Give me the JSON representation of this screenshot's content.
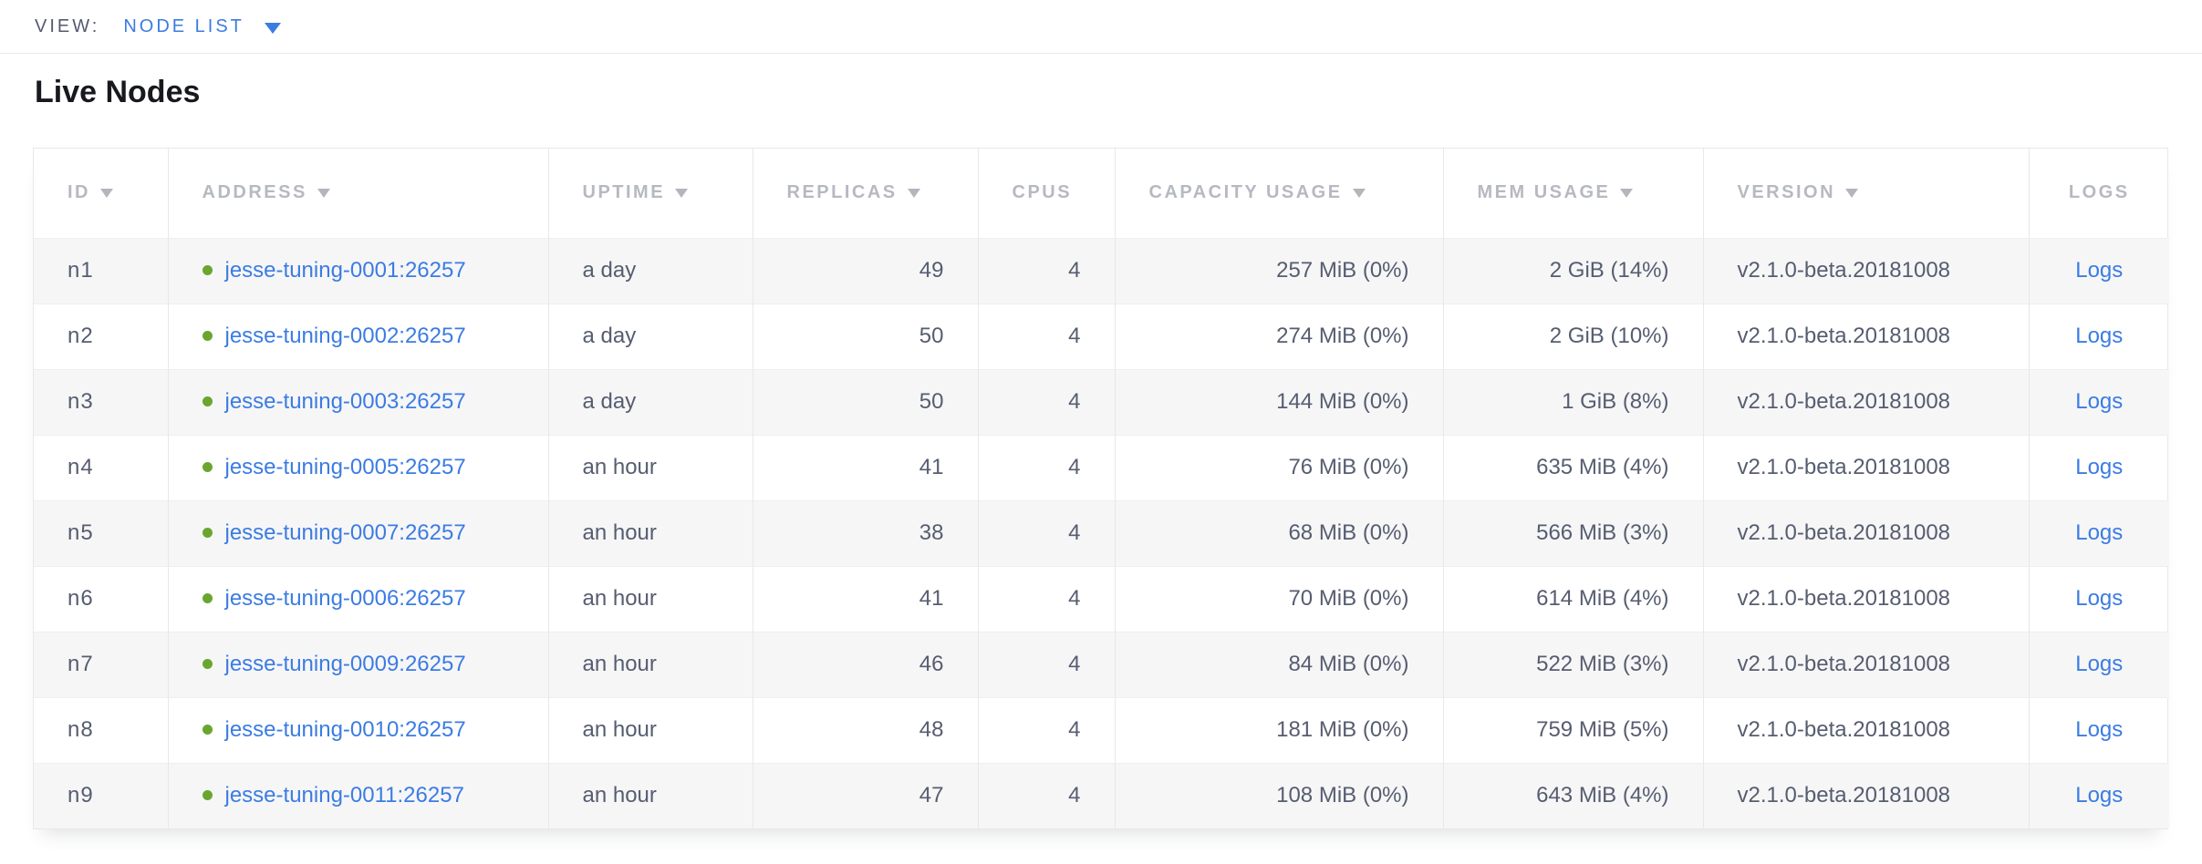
{
  "colors": {
    "accent_blue": "#3b7ce2",
    "status_green": "#6aa62f"
  },
  "view_bar": {
    "label": "VIEW:",
    "selected_view": "NODE LIST",
    "dropdown_icon": "triangle-down"
  },
  "heading": "Live Nodes",
  "table": {
    "sort_icon": "triangle-down",
    "status_icon": "green-dot",
    "columns": [
      {
        "key": "id",
        "label": "ID",
        "sortable": true
      },
      {
        "key": "address",
        "label": "ADDRESS",
        "sortable": true
      },
      {
        "key": "uptime",
        "label": "UPTIME",
        "sortable": true
      },
      {
        "key": "replicas",
        "label": "REPLICAS",
        "sortable": true
      },
      {
        "key": "cpus",
        "label": "CPUS",
        "sortable": false
      },
      {
        "key": "capacity",
        "label": "CAPACITY USAGE",
        "sortable": true
      },
      {
        "key": "mem",
        "label": "MEM USAGE",
        "sortable": true
      },
      {
        "key": "version",
        "label": "VERSION",
        "sortable": true
      },
      {
        "key": "logs",
        "label": "LOGS",
        "sortable": false
      }
    ],
    "rows": [
      {
        "id": "n1",
        "address": "jesse-tuning-0001:26257",
        "uptime": "a day",
        "replicas": "49",
        "cpus": "4",
        "capacity": "257 MiB (0%)",
        "mem": "2 GiB (14%)",
        "version": "v2.1.0-beta.20181008",
        "logs": "Logs"
      },
      {
        "id": "n2",
        "address": "jesse-tuning-0002:26257",
        "uptime": "a day",
        "replicas": "50",
        "cpus": "4",
        "capacity": "274 MiB (0%)",
        "mem": "2 GiB (10%)",
        "version": "v2.1.0-beta.20181008",
        "logs": "Logs"
      },
      {
        "id": "n3",
        "address": "jesse-tuning-0003:26257",
        "uptime": "a day",
        "replicas": "50",
        "cpus": "4",
        "capacity": "144 MiB (0%)",
        "mem": "1 GiB (8%)",
        "version": "v2.1.0-beta.20181008",
        "logs": "Logs"
      },
      {
        "id": "n4",
        "address": "jesse-tuning-0005:26257",
        "uptime": "an hour",
        "replicas": "41",
        "cpus": "4",
        "capacity": "76 MiB (0%)",
        "mem": "635 MiB (4%)",
        "version": "v2.1.0-beta.20181008",
        "logs": "Logs"
      },
      {
        "id": "n5",
        "address": "jesse-tuning-0007:26257",
        "uptime": "an hour",
        "replicas": "38",
        "cpus": "4",
        "capacity": "68 MiB (0%)",
        "mem": "566 MiB (3%)",
        "version": "v2.1.0-beta.20181008",
        "logs": "Logs"
      },
      {
        "id": "n6",
        "address": "jesse-tuning-0006:26257",
        "uptime": "an hour",
        "replicas": "41",
        "cpus": "4",
        "capacity": "70 MiB (0%)",
        "mem": "614 MiB (4%)",
        "version": "v2.1.0-beta.20181008",
        "logs": "Logs"
      },
      {
        "id": "n7",
        "address": "jesse-tuning-0009:26257",
        "uptime": "an hour",
        "replicas": "46",
        "cpus": "4",
        "capacity": "84 MiB (0%)",
        "mem": "522 MiB (3%)",
        "version": "v2.1.0-beta.20181008",
        "logs": "Logs"
      },
      {
        "id": "n8",
        "address": "jesse-tuning-0010:26257",
        "uptime": "an hour",
        "replicas": "48",
        "cpus": "4",
        "capacity": "181 MiB (0%)",
        "mem": "759 MiB (5%)",
        "version": "v2.1.0-beta.20181008",
        "logs": "Logs"
      },
      {
        "id": "n9",
        "address": "jesse-tuning-0011:26257",
        "uptime": "an hour",
        "replicas": "47",
        "cpus": "4",
        "capacity": "108 MiB (0%)",
        "mem": "643 MiB (4%)",
        "version": "v2.1.0-beta.20181008",
        "logs": "Logs"
      }
    ]
  }
}
